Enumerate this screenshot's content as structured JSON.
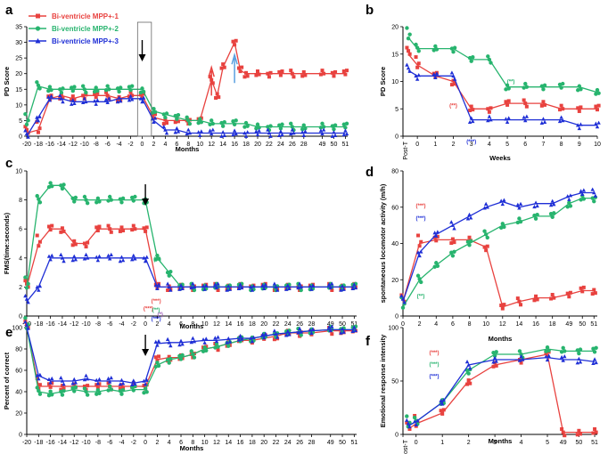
{
  "colors": {
    "s1": "#e8423f",
    "s2": "#27b46e",
    "s3": "#1f2fd6",
    "arrow_blue": "#5aa0e0"
  },
  "legend": [
    "Bi-ventricle MPP+-1",
    "Bi-ventricle MPP+-2",
    "Bi-ventricle MPP+-3"
  ],
  "chart_data": [
    {
      "id": "a",
      "panel_label": "a",
      "type": "scatter",
      "ylabel": "PD Score",
      "xlabel": "Months",
      "ylim": [
        0,
        35
      ],
      "yticks": [
        "0",
        "5",
        "10",
        "15",
        "20",
        "25",
        "30",
        "35"
      ],
      "xticks": [
        "-20",
        "-18",
        "-16",
        "-14",
        "-12",
        "-10",
        "-8",
        "-6",
        "-4",
        "-2",
        "0",
        "2",
        "4",
        "6",
        "8",
        "10",
        "12",
        "14",
        "16",
        "18",
        "20",
        "22",
        "24",
        "26",
        "28",
        "49",
        "50",
        "51"
      ],
      "series": [
        {
          "name": "Bi-ventricle MPP+-1",
          "x": [
            -20,
            -18,
            -16,
            -14,
            -12,
            -10,
            -8,
            -6,
            -4,
            -2,
            0,
            2,
            4,
            6,
            8,
            10,
            12,
            13,
            14,
            16,
            17,
            18,
            20,
            22,
            24,
            26,
            28,
            49,
            50,
            51
          ],
          "y": [
            1,
            2,
            12,
            13,
            12,
            13,
            13,
            13,
            12,
            13,
            13,
            6,
            5,
            5,
            5,
            5,
            18,
            13,
            22,
            30,
            21,
            20,
            20,
            20,
            20,
            20,
            20,
            20,
            20,
            20
          ]
        },
        {
          "name": "Bi-ventricle MPP+-2",
          "x": [
            -20,
            -18,
            -16,
            -14,
            -12,
            -10,
            -8,
            -6,
            -4,
            -2,
            0,
            2,
            4,
            6,
            8,
            10,
            12,
            14,
            16,
            18,
            20,
            22,
            24,
            26,
            28,
            49,
            50,
            51
          ],
          "y": [
            4,
            16,
            15,
            15,
            15,
            15,
            15,
            15,
            15,
            15,
            15,
            8,
            7,
            6,
            5,
            5,
            4,
            4,
            4,
            4,
            3,
            3,
            3,
            3,
            3,
            3,
            3,
            3
          ]
        },
        {
          "name": "Bi-ventricle MPP+-3",
          "x": [
            -20,
            -18,
            -16,
            -14,
            -12,
            -10,
            -8,
            -6,
            -4,
            -2,
            0,
            2,
            4,
            6,
            8,
            10,
            12,
            14,
            16,
            18,
            20,
            22,
            24,
            26,
            28,
            49,
            50,
            51
          ],
          "y": [
            0,
            6,
            12,
            12,
            11,
            11,
            11,
            11,
            12,
            12,
            12,
            5,
            2,
            2,
            1,
            1,
            1,
            1,
            1,
            1,
            1,
            1,
            1,
            1,
            1,
            1,
            1,
            1
          ]
        }
      ]
    },
    {
      "id": "b",
      "panel_label": "b",
      "type": "scatter",
      "ylabel": "PD Score",
      "xlabel": "Weeks",
      "ylim": [
        0,
        20
      ],
      "yticks": [
        "0",
        "5",
        "10",
        "15",
        "20"
      ],
      "xticks": [
        "Post-T",
        "0",
        "1",
        "2",
        "3",
        "4",
        "5",
        "6",
        "7",
        "8",
        "9",
        "10"
      ],
      "series": [
        {
          "name": "Bi-ventricle MPP+-1",
          "x": [
            -0.5,
            0,
            1,
            2,
            3,
            4,
            5,
            6,
            7,
            8,
            9,
            10
          ],
          "y": [
            15,
            13,
            11,
            10,
            5,
            5,
            6,
            6,
            6,
            5,
            5,
            5
          ]
        },
        {
          "name": "Bi-ventricle MPP+-2",
          "x": [
            -0.5,
            0,
            1,
            2,
            3,
            4,
            5,
            6,
            7,
            8,
            9,
            10
          ],
          "y": [
            18,
            16,
            16,
            16,
            14,
            14,
            9,
            9,
            9,
            9,
            9,
            8
          ]
        },
        {
          "name": "Bi-ventricle MPP+-3",
          "x": [
            -0.5,
            0,
            1,
            2,
            3,
            4,
            5,
            6,
            7,
            8,
            9,
            10
          ],
          "y": [
            12,
            11,
            11,
            11,
            3,
            3,
            3,
            3,
            3,
            3,
            2,
            2
          ]
        }
      ],
      "annotations": [
        "(**)",
        "(**)",
        "(***)"
      ]
    },
    {
      "id": "c",
      "panel_label": "c",
      "type": "scatter",
      "ylabel": "FMS(time:seconds)",
      "xlabel": "Months",
      "ylim": [
        0,
        10
      ],
      "yticks": [
        "0",
        "2",
        "4",
        "6",
        "8",
        "10"
      ],
      "xticks": [
        "-20",
        "-18",
        "-16",
        "-14",
        "-12",
        "-10",
        "-8",
        "-6",
        "-4",
        "-2",
        "0",
        "2",
        "4",
        "6",
        "8",
        "10",
        "12",
        "14",
        "16",
        "18",
        "20",
        "22",
        "24",
        "26",
        "28",
        "49",
        "50",
        "51"
      ],
      "series": [
        {
          "name": "Bi-ventricle MPP+-1",
          "x": [
            -20,
            -18,
            -16,
            -14,
            -12,
            -10,
            -8,
            -6,
            -4,
            -2,
            0,
            2,
            4,
            6,
            8,
            10,
            12,
            14,
            16,
            18,
            20,
            22,
            24,
            26,
            28,
            49,
            50,
            51
          ],
          "y": [
            2,
            5,
            6,
            6,
            5,
            5,
            6,
            6,
            6,
            6,
            6,
            2,
            2,
            2,
            2,
            2,
            2,
            2,
            2,
            2,
            2,
            2,
            2,
            2,
            2,
            2,
            2,
            2
          ]
        },
        {
          "name": "Bi-ventricle MPP+-2",
          "x": [
            -20,
            -18,
            -16,
            -14,
            -12,
            -10,
            -8,
            -6,
            -4,
            -2,
            0,
            2,
            4,
            6,
            8,
            10,
            12,
            14,
            16,
            18,
            20,
            22,
            24,
            26,
            28,
            49,
            50,
            51
          ],
          "y": [
            2,
            8,
            9,
            9,
            8,
            8,
            8,
            8,
            8,
            8,
            8,
            4,
            3,
            2,
            2,
            2,
            2,
            2,
            2,
            2,
            2,
            2,
            2,
            2,
            2,
            2,
            2,
            2
          ]
        },
        {
          "name": "Bi-ventricle MPP+-3",
          "x": [
            -20,
            -18,
            -16,
            -14,
            -12,
            -10,
            -8,
            -6,
            -4,
            -2,
            0,
            2,
            4,
            6,
            8,
            10,
            12,
            14,
            16,
            18,
            20,
            22,
            24,
            26,
            28,
            49,
            50,
            51
          ],
          "y": [
            1,
            2,
            4,
            4,
            4,
            4,
            4,
            4,
            4,
            4,
            4,
            2,
            2,
            2,
            2,
            2,
            2,
            2,
            2,
            2,
            2,
            2,
            2,
            2,
            2,
            2,
            2,
            2
          ]
        }
      ],
      "annotations": [
        "(**)",
        "(***)",
        "(*)"
      ]
    },
    {
      "id": "d",
      "panel_label": "d",
      "type": "scatter",
      "ylabel": "spontaneous locomotor activity (m/h)",
      "xlabel": "Months",
      "ylim": [
        0,
        80
      ],
      "yticks": [
        "0",
        "20",
        "40",
        "60",
        "80"
      ],
      "xticks": [
        "0",
        "2",
        "4",
        "6",
        "8",
        "10",
        "12",
        "14",
        "16",
        "18",
        "49",
        "50",
        "51"
      ],
      "series": [
        {
          "name": "Bi-ventricle MPP+-1",
          "x": [
            0,
            2,
            4,
            6,
            8,
            10,
            12,
            14,
            16,
            18,
            49,
            50,
            51
          ],
          "y": [
            8,
            40,
            42,
            42,
            42,
            38,
            5,
            8,
            10,
            10,
            12,
            14,
            14
          ]
        },
        {
          "name": "Bi-ventricle MPP+-2",
          "x": [
            0,
            2,
            4,
            6,
            8,
            10,
            12,
            14,
            16,
            18,
            49,
            50,
            51
          ],
          "y": [
            5,
            20,
            28,
            35,
            40,
            45,
            50,
            52,
            55,
            55,
            62,
            65,
            65
          ]
        },
        {
          "name": "Bi-ventricle MPP+-3",
          "x": [
            0,
            2,
            4,
            6,
            8,
            10,
            12,
            14,
            16,
            18,
            49,
            50,
            51
          ],
          "y": [
            8,
            35,
            45,
            50,
            55,
            60,
            63,
            60,
            62,
            62,
            66,
            68,
            68
          ]
        }
      ],
      "annotations": [
        "(***)",
        "(***)",
        "(**)"
      ]
    },
    {
      "id": "e",
      "panel_label": "e",
      "type": "scatter",
      "ylabel": "Percent of correct",
      "xlabel": "Months",
      "ylim": [
        0,
        100
      ],
      "yticks": [
        "0",
        "20",
        "40",
        "60",
        "80",
        "100"
      ],
      "xticks": [
        "-20",
        "-18",
        "-16",
        "-14",
        "-12",
        "-10",
        "-8",
        "-6",
        "-4",
        "-2",
        "0",
        "2",
        "4",
        "6",
        "8",
        "10",
        "12",
        "14",
        "16",
        "18",
        "20",
        "22",
        "24",
        "26",
        "28",
        "49",
        "50",
        "51"
      ],
      "series": [
        {
          "name": "Bi-ventricle MPP+-1",
          "x": [
            -20,
            -18,
            -16,
            -14,
            -12,
            -10,
            -8,
            -6,
            -4,
            -2,
            0,
            2,
            4,
            6,
            8,
            10,
            12,
            14,
            16,
            18,
            20,
            22,
            24,
            26,
            28,
            49,
            50,
            51
          ],
          "y": [
            100,
            45,
            45,
            45,
            45,
            45,
            45,
            45,
            45,
            45,
            45,
            70,
            72,
            72,
            75,
            80,
            82,
            85,
            88,
            88,
            90,
            92,
            95,
            95,
            95,
            97,
            97,
            97
          ]
        },
        {
          "name": "Bi-ventricle MPP+-2",
          "x": [
            -20,
            -18,
            -16,
            -14,
            -12,
            -10,
            -8,
            -6,
            -4,
            -2,
            0,
            2,
            4,
            6,
            8,
            10,
            12,
            14,
            16,
            18,
            20,
            22,
            24,
            26,
            28,
            49,
            50,
            51
          ],
          "y": [
            100,
            40,
            38,
            40,
            42,
            40,
            40,
            42,
            40,
            42,
            42,
            65,
            70,
            72,
            75,
            80,
            82,
            85,
            88,
            90,
            92,
            94,
            95,
            96,
            97,
            98,
            98,
            98
          ]
        },
        {
          "name": "Bi-ventricle MPP+-3",
          "x": [
            -20,
            -18,
            -16,
            -14,
            -12,
            -10,
            -8,
            -6,
            -4,
            -2,
            0,
            2,
            4,
            6,
            8,
            10,
            12,
            14,
            16,
            18,
            20,
            22,
            24,
            26,
            28,
            49,
            50,
            51
          ],
          "y": [
            100,
            55,
            50,
            50,
            50,
            52,
            50,
            50,
            50,
            48,
            50,
            85,
            86,
            86,
            87,
            88,
            88,
            89,
            90,
            90,
            92,
            94,
            95,
            96,
            97,
            98,
            98,
            98
          ]
        }
      ],
      "annotations": [
        "(***)",
        "(**)",
        "(***)"
      ]
    },
    {
      "id": "f",
      "panel_label": "f",
      "type": "scatter",
      "ylabel": "Emotional response intensity",
      "xlabel": "Months",
      "ylim": [
        0,
        100
      ],
      "yticks": [
        "0",
        "50",
        "100"
      ],
      "xticks": [
        "Post-T",
        "0",
        "1",
        "2",
        "3",
        "4",
        "5",
        "49",
        "50",
        "51"
      ],
      "series": [
        {
          "name": "Bi-ventricle MPP+-1",
          "x": [
            -0.3,
            0,
            1,
            2,
            3,
            4,
            5,
            5.6,
            6.2,
            6.8
          ],
          "y": [
            5,
            10,
            20,
            50,
            65,
            70,
            75,
            2,
            2,
            2
          ]
        },
        {
          "name": "Bi-ventricle MPP+-2",
          "x": [
            -0.3,
            0,
            1,
            2,
            3,
            4,
            5,
            5.6,
            6.2,
            6.8
          ],
          "y": [
            8,
            12,
            30,
            60,
            75,
            75,
            80,
            78,
            78,
            78
          ]
        },
        {
          "name": "Bi-ventricle MPP+-3",
          "x": [
            -0.3,
            0,
            1,
            2,
            3,
            4,
            5,
            5.6,
            6.2,
            6.8
          ],
          "y": [
            8,
            12,
            30,
            65,
            70,
            70,
            72,
            70,
            70,
            68
          ]
        }
      ],
      "annotations": [
        "(***)",
        "(***)",
        "(***)"
      ]
    }
  ]
}
